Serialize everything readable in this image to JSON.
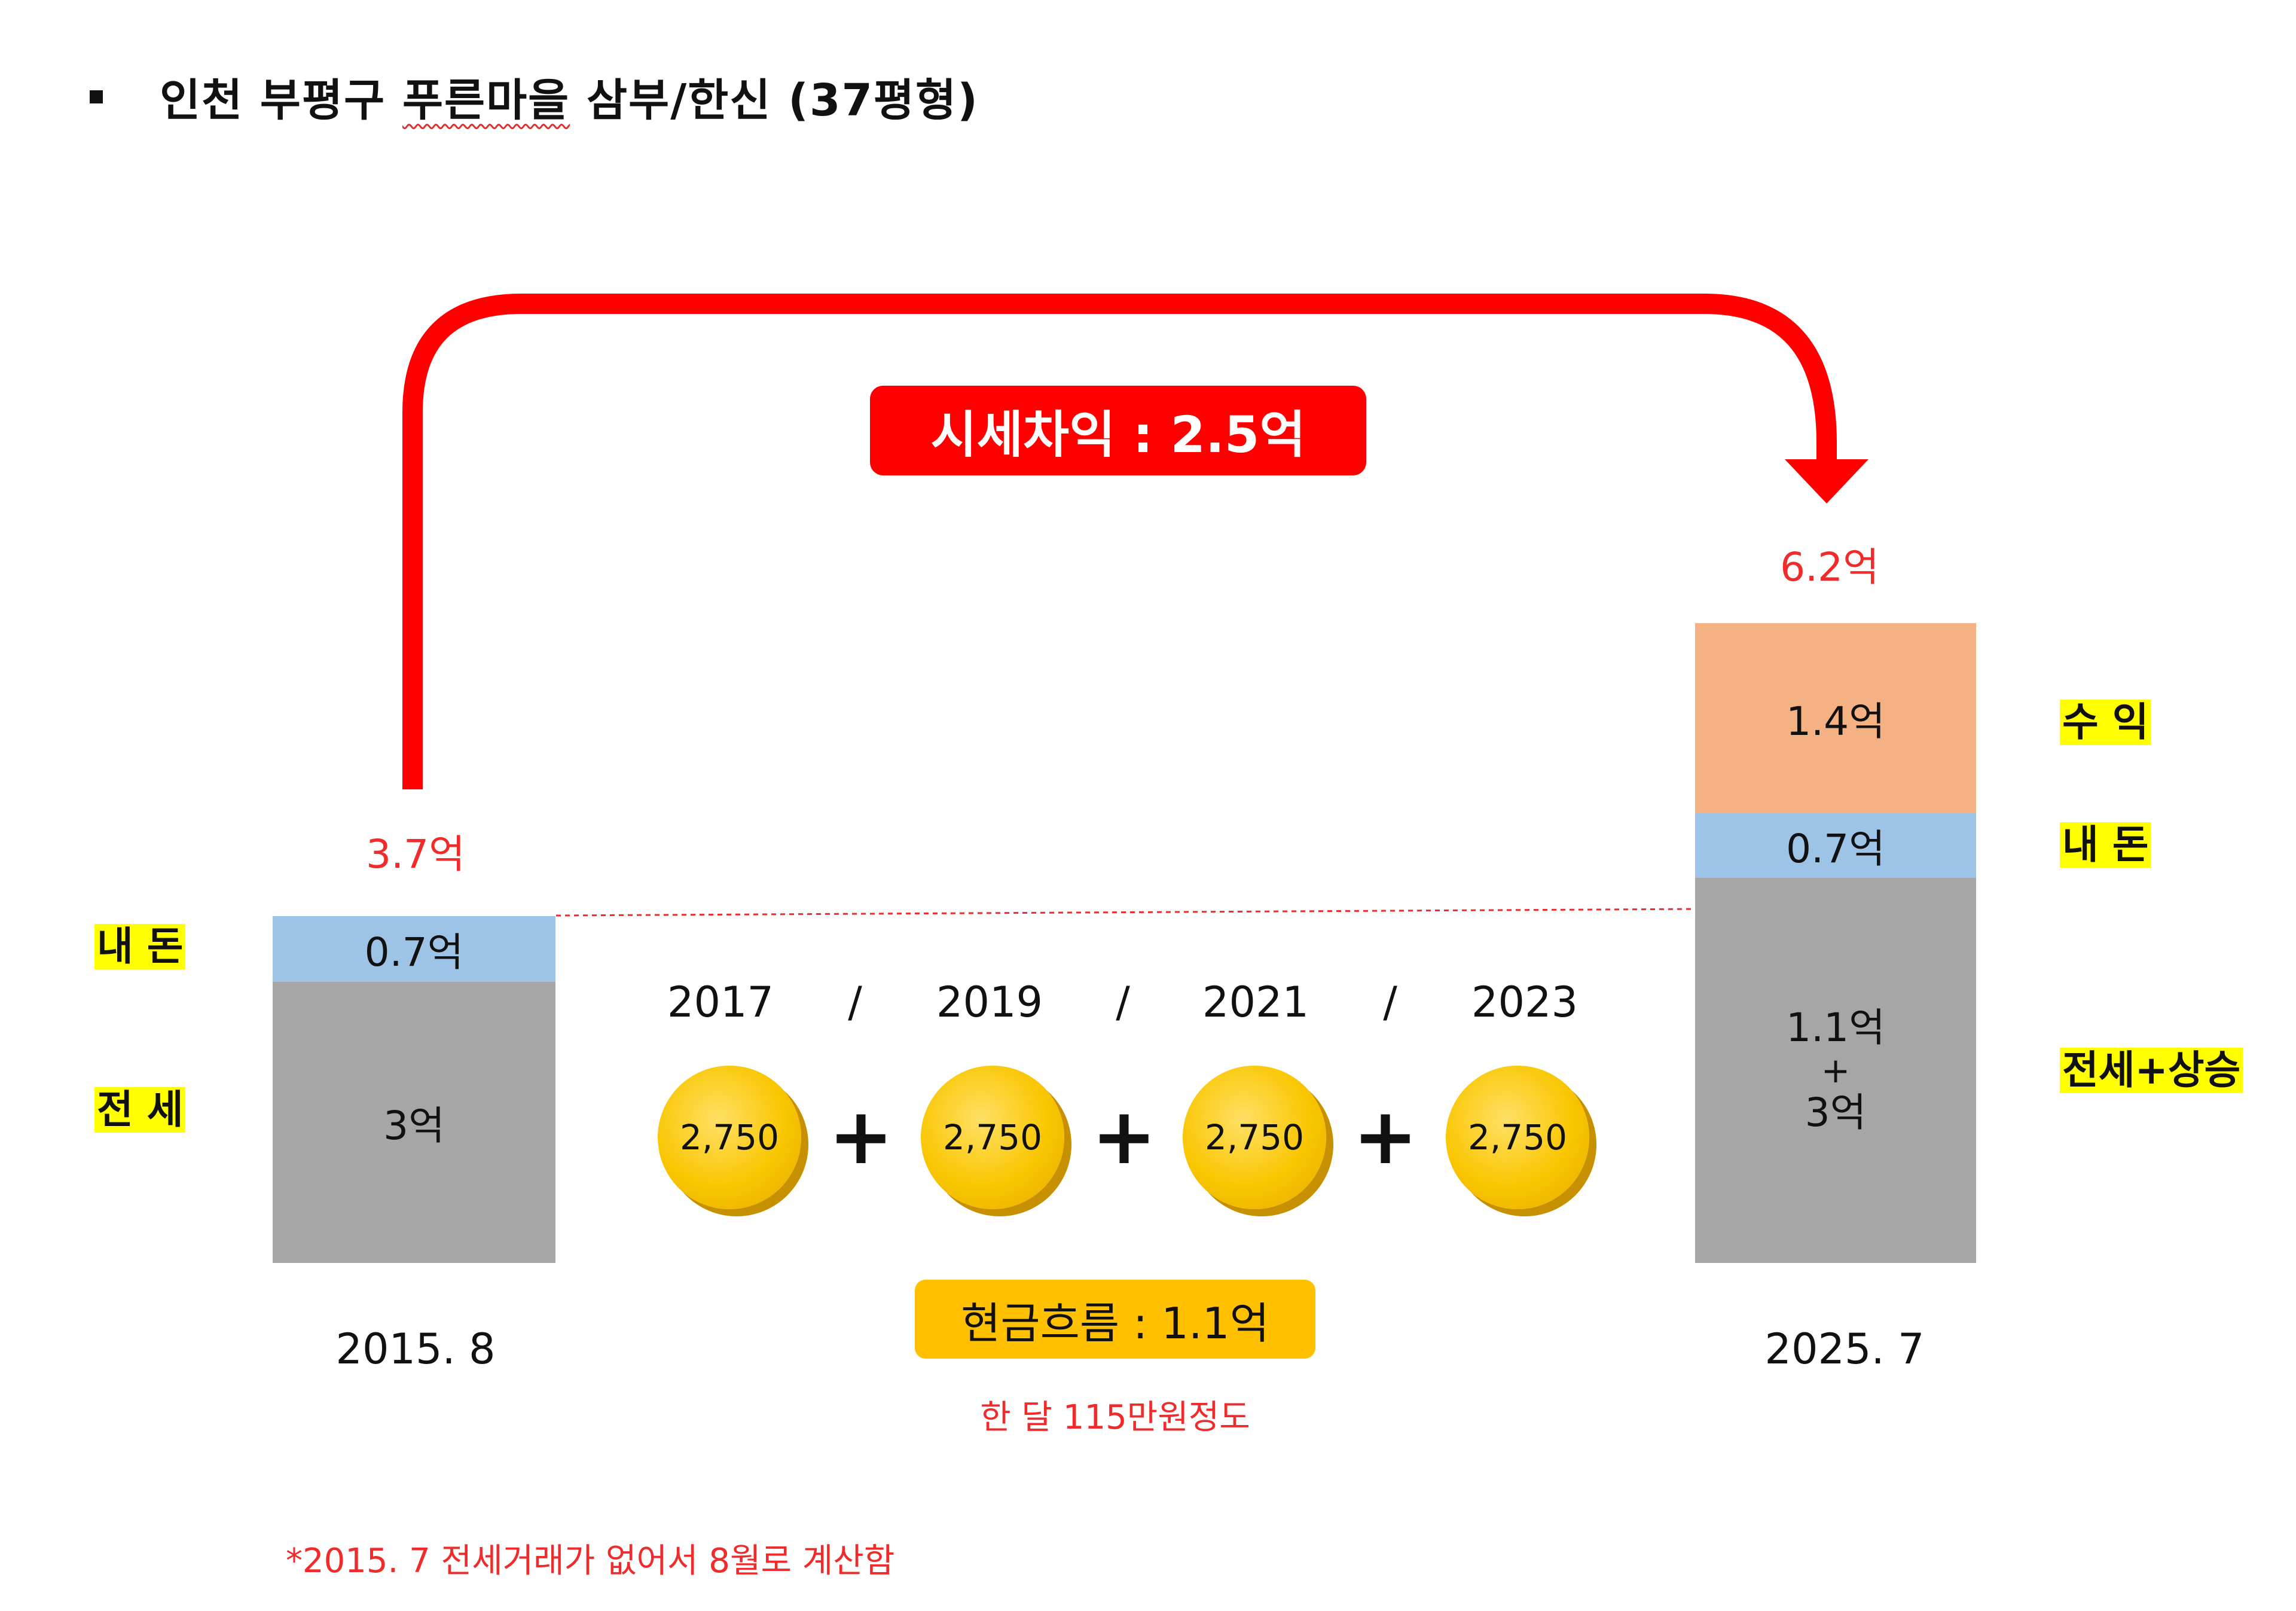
{
  "title": {
    "prefix": "인천 부평구 ",
    "underlined": "푸른마을",
    "suffix": " 삼부/한신 (37평형)"
  },
  "gain_badge": "시세차익 : 2.5억",
  "left": {
    "total": "3.7억",
    "my_money": "0.7억",
    "jeonse": "3억",
    "date": "2015. 8",
    "label_my_money": "내 돈",
    "label_jeonse": "전 세"
  },
  "right": {
    "total": "6.2억",
    "profit": "1.4억",
    "my_money": "0.7억",
    "jeonse_line1": "1.1억",
    "jeonse_line2": "+",
    "jeonse_line3": "3억",
    "date": "2025. 7",
    "label_profit": "수 익",
    "label_my_money": "내 돈",
    "label_jeonse": "전세+상승"
  },
  "cashflow": {
    "years": [
      "2017",
      "2019",
      "2021",
      "2023"
    ],
    "separator": "/",
    "coins": [
      "2,750",
      "2,750",
      "2,750",
      "2,750"
    ],
    "plus": "+",
    "badge": "현금흐름 : 1.1억",
    "note": "한 달 115만원정도"
  },
  "footnote": "*2015. 7 전세거래가 없어서 8월로 계산함",
  "colors": {
    "arrow": "#ff0000",
    "red_text": "#ef2b2b",
    "jeonse_gray": "#a6a6a6",
    "my_money_blue": "#9dc3e6",
    "profit_orange": "#f4b183",
    "highlight_yellow": "#ffff00",
    "coin_gold": "#f9c600",
    "cashflow_badge": "#ffc000"
  }
}
